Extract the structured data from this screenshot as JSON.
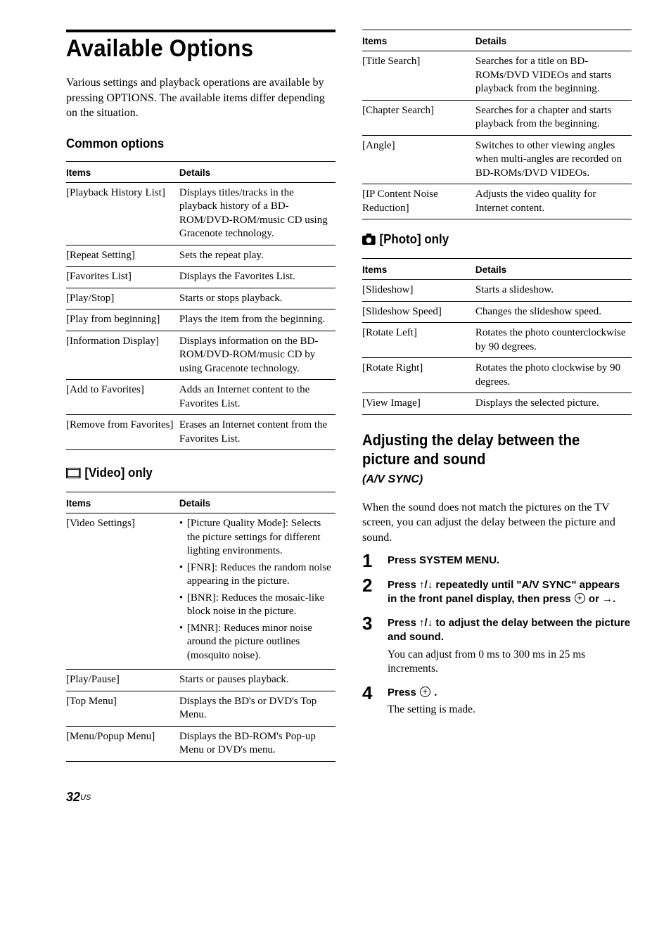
{
  "page": {
    "number": "32",
    "suffix": "US"
  },
  "heading": "Available Options",
  "intro": "Various settings and playback operations are available by pressing OPTIONS. The available items differ depending on the situation.",
  "common_heading": "Common options",
  "table_headers": {
    "items": "Items",
    "details": "Details"
  },
  "common": [
    {
      "item": "[Playback History List]",
      "detail": "Displays titles/tracks in the playback history of a BD-ROM/DVD-ROM/music CD using Gracenote technology."
    },
    {
      "item": "[Repeat Setting]",
      "detail": "Sets the repeat play."
    },
    {
      "item": "[Favorites List]",
      "detail": "Displays the Favorites List."
    },
    {
      "item": "[Play/Stop]",
      "detail": "Starts or stops playback."
    },
    {
      "item": "[Play from beginning]",
      "detail": "Plays the item from the beginning."
    },
    {
      "item": "[Information Display]",
      "detail": "Displays information on the BD-ROM/DVD-ROM/music CD by using Gracenote technology."
    },
    {
      "item": "[Add to Favorites]",
      "detail": "Adds an Internet content to the Favorites List."
    },
    {
      "item": "[Remove from Favorites]",
      "detail": "Erases an Internet content from the Favorites List."
    }
  ],
  "video_heading": "[Video] only",
  "video": [
    {
      "item": "[Video Settings]",
      "bullets": [
        "[Picture Quality Mode]: Selects the picture settings for different lighting environments.",
        "[FNR]: Reduces the random noise appearing in the picture.",
        "[BNR]: Reduces the mosaic-like block noise in the picture.",
        "[MNR]: Reduces minor noise around the picture outlines (mosquito noise)."
      ]
    },
    {
      "item": "[Play/Pause]",
      "detail": "Starts or pauses playback."
    },
    {
      "item": "[Top Menu]",
      "detail": "Displays the BD's or DVD's Top Menu."
    },
    {
      "item": "[Menu/Popup Menu]",
      "detail": "Displays the BD-ROM's Pop-up Menu or DVD's menu."
    }
  ],
  "video_cont": [
    {
      "item": "[Title Search]",
      "detail": "Searches for a title on BD-ROMs/DVD VIDEOs and starts playback from the beginning."
    },
    {
      "item": "[Chapter Search]",
      "detail": "Searches for a chapter and starts playback from the beginning."
    },
    {
      "item": "[Angle]",
      "detail": "Switches to other viewing angles when multi-angles are recorded on BD-ROMs/DVD VIDEOs."
    },
    {
      "item": "[IP Content Noise Reduction]",
      "detail": "Adjusts the video quality for Internet content."
    }
  ],
  "photo_heading": "[Photo] only",
  "photo": [
    {
      "item": "[Slideshow]",
      "detail": "Starts a slideshow."
    },
    {
      "item": "[Slideshow Speed]",
      "detail": "Changes the slideshow speed."
    },
    {
      "item": "[Rotate Left]",
      "detail": "Rotates the photo counterclockwise by 90 degrees."
    },
    {
      "item": "[Rotate Right]",
      "detail": "Rotates the photo clockwise by 90 degrees."
    },
    {
      "item": "[View Image]",
      "detail": "Displays the selected picture."
    }
  ],
  "adjust_heading": "Adjusting the delay between the picture and sound",
  "av_sync": "(A/V SYNC)",
  "adjust_intro": "When the sound does not match the pictures on the TV screen, you can adjust the delay between the picture and sound.",
  "steps": [
    {
      "head": "Press SYSTEM MENU."
    },
    {
      "head_parts": [
        "Press ",
        "X/x",
        " repeatedly until \"A/V SYNC\" appears in the front panel display, then press ",
        "CIRC",
        " or ",
        "c",
        "."
      ]
    },
    {
      "head_parts": [
        "Press ",
        "X/x",
        " to adjust the delay between the picture and sound."
      ],
      "body": "You can adjust from 0 ms to 300 ms in 25 ms increments."
    },
    {
      "head_parts": [
        "Press ",
        "CIRC",
        " ."
      ],
      "body": "The setting is made."
    }
  ]
}
